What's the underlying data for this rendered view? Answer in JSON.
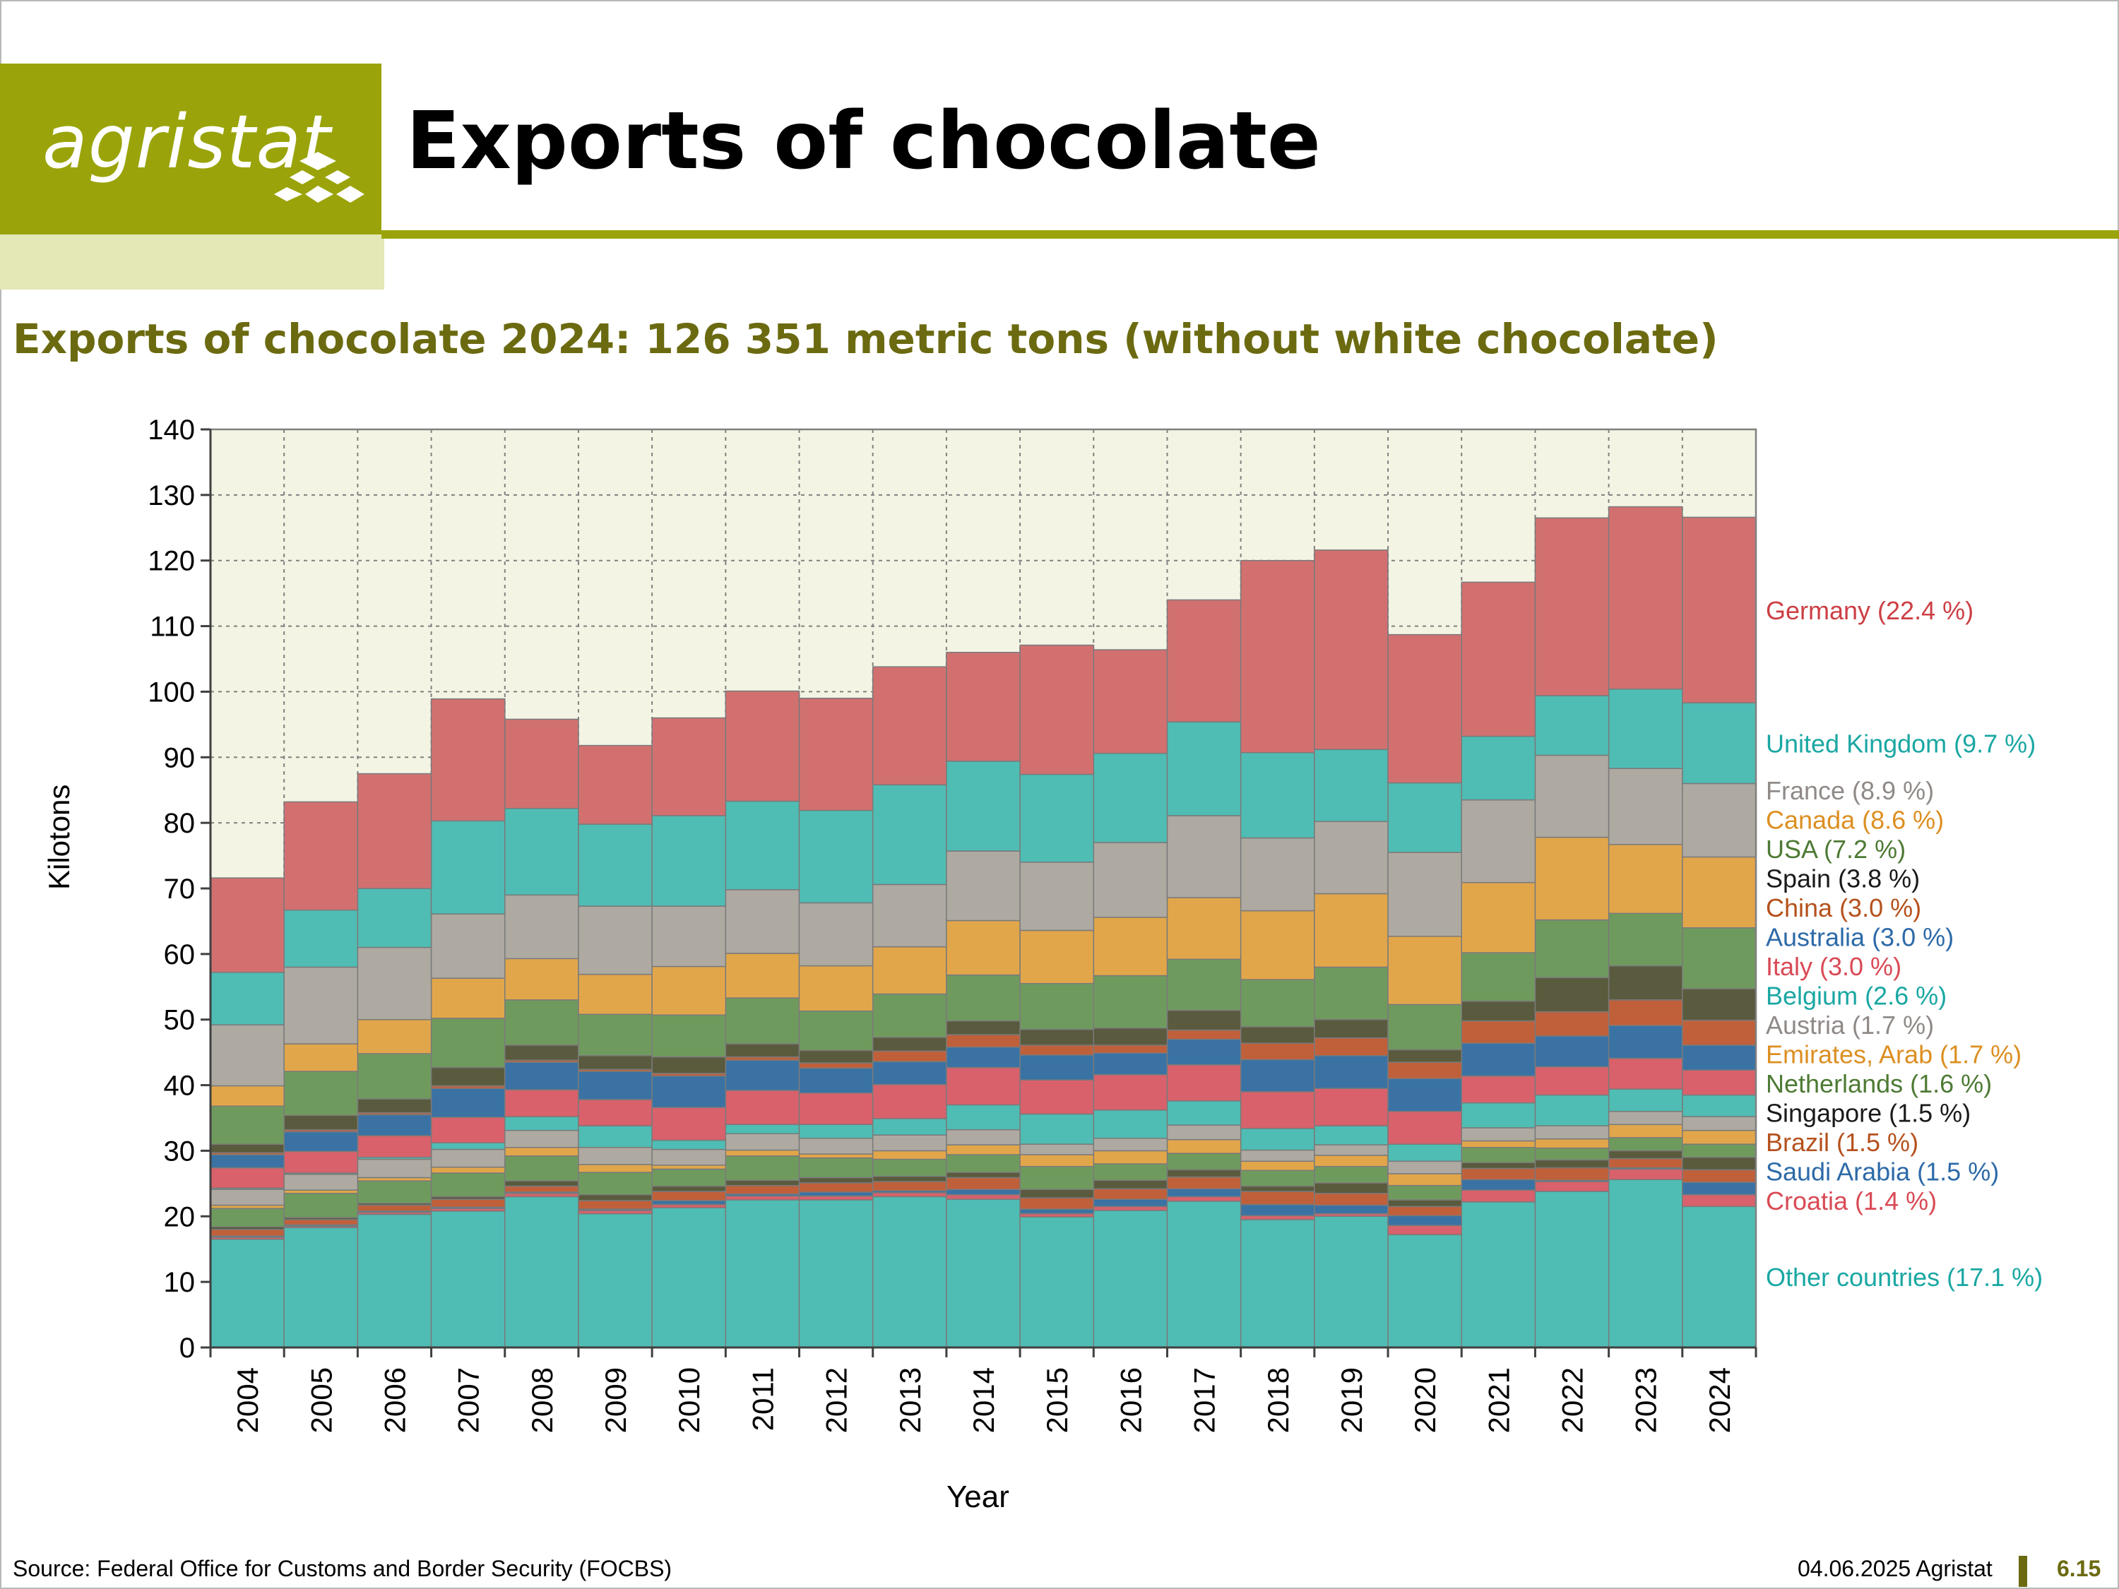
{
  "header": {
    "logo_text": "agristat",
    "page_title": "Exports of chocolate",
    "subtitle": "Exports of chocolate 2024: 126 351 metric tons (without white chocolate)"
  },
  "footer": {
    "source": "Source: Federal Office for Customs and Border Security (FOCBS)",
    "date": "04.06.2025 Agristat",
    "page_number": "6.15"
  },
  "chart_data": {
    "type": "bar",
    "stacked": true,
    "title": "Exports of chocolate 2024: 126 351 metric tons (without white chocolate)",
    "xlabel": "Year",
    "ylabel": "Kilotons",
    "ylim": [
      0,
      140
    ],
    "yticks": [
      0,
      10,
      20,
      30,
      40,
      50,
      60,
      70,
      80,
      90,
      100,
      110,
      120,
      130,
      140
    ],
    "grid": true,
    "legend_placement": "right",
    "plot_background": "#f4f4e4",
    "categories": [
      "2004",
      "2005",
      "2006",
      "2007",
      "2008",
      "2009",
      "2010",
      "2011",
      "2012",
      "2013",
      "2014",
      "2015",
      "2016",
      "2017",
      "2018",
      "2019",
      "2020",
      "2021",
      "2022",
      "2023",
      "2024"
    ],
    "series": [
      {
        "name": "Other countries (17.1 %)",
        "color": "#4fbdb4",
        "values": [
          16.5,
          18.3,
          20.3,
          20.8,
          23.0,
          20.4,
          21.3,
          22.5,
          22.5,
          23.0,
          22.6,
          19.9,
          20.9,
          22.3,
          19.5,
          20.0,
          17.2,
          22.2,
          23.8,
          25.6,
          21.5
        ]
      },
      {
        "name": "Croatia (1.4 %)",
        "color": "#d8616b",
        "values": [
          0.3,
          0.2,
          0.3,
          0.4,
          0.5,
          0.5,
          0.5,
          0.6,
          0.6,
          0.6,
          0.7,
          0.5,
          0.6,
          0.7,
          0.6,
          0.4,
          1.4,
          1.8,
          1.5,
          1.6,
          1.8
        ]
      },
      {
        "name": "Saudi Arabia (1.5 %)",
        "color": "#3a72a4",
        "values": [
          0.2,
          0.2,
          0.2,
          0.2,
          0.2,
          0.2,
          0.6,
          0.3,
          0.6,
          0.3,
          0.8,
          0.7,
          1.1,
          1.2,
          1.7,
          1.3,
          1.5,
          1.6,
          0.2,
          0.2,
          1.9
        ]
      },
      {
        "name": "Brazil (1.5 %)",
        "color": "#c0603a",
        "values": [
          1.0,
          0.8,
          0.9,
          1.2,
          0.9,
          1.3,
          1.4,
          1.3,
          1.4,
          1.4,
          1.8,
          1.7,
          1.6,
          1.8,
          2.0,
          1.8,
          1.4,
          1.7,
          1.9,
          1.4,
          1.9
        ]
      },
      {
        "name": "Singapore (1.5 %)",
        "color": "#5a5a3e",
        "values": [
          0.4,
          0.3,
          0.3,
          0.4,
          0.8,
          0.9,
          0.8,
          0.8,
          0.8,
          0.8,
          0.8,
          1.3,
          1.3,
          1.1,
          0.8,
          1.6,
          1.0,
          0.9,
          1.2,
          1.2,
          1.9
        ]
      },
      {
        "name": "Netherlands (1.6 %)",
        "color": "#6f9a5e",
        "values": [
          2.8,
          3.7,
          3.4,
          3.6,
          3.8,
          3.4,
          2.6,
          3.7,
          3.0,
          2.6,
          2.7,
          3.5,
          2.5,
          2.5,
          2.4,
          2.5,
          2.2,
          2.3,
          1.8,
          2.0,
          2.0
        ]
      },
      {
        "name": "Emirates, Arab (1.7 %)",
        "color": "#e2a64a",
        "values": [
          0.5,
          0.5,
          0.5,
          0.9,
          1.3,
          1.2,
          0.6,
          0.9,
          0.6,
          1.3,
          1.5,
          1.8,
          2.0,
          2.1,
          1.4,
          1.7,
          1.8,
          1.0,
          1.4,
          2.0,
          2.1
        ]
      },
      {
        "name": "Austria (1.7 %)",
        "color": "#aeaaa2",
        "values": [
          2.4,
          2.4,
          2.8,
          2.7,
          2.6,
          2.6,
          2.4,
          2.5,
          2.4,
          2.4,
          2.3,
          1.6,
          1.9,
          2.2,
          1.7,
          1.6,
          1.9,
          2.0,
          2.0,
          2.0,
          2.1
        ]
      },
      {
        "name": "Belgium (2.6 %)",
        "color": "#4fbdb4",
        "values": [
          0.2,
          0.2,
          0.3,
          1.0,
          2.1,
          3.3,
          1.4,
          1.4,
          2.1,
          2.5,
          3.8,
          4.6,
          4.3,
          3.7,
          3.3,
          2.9,
          2.6,
          3.8,
          4.7,
          3.4,
          3.3
        ]
      },
      {
        "name": "Italy (3.0 %)",
        "color": "#d8616b",
        "values": [
          3.1,
          3.3,
          3.3,
          3.9,
          4.1,
          4.0,
          5.0,
          5.2,
          4.8,
          5.2,
          5.7,
          5.2,
          5.4,
          5.5,
          5.6,
          5.7,
          5.0,
          4.1,
          4.3,
          4.7,
          3.8
        ]
      },
      {
        "name": "Australia (3.0 %)",
        "color": "#3a72a4",
        "values": [
          2.0,
          3.0,
          3.2,
          4.4,
          4.2,
          4.3,
          4.8,
          4.6,
          3.8,
          3.5,
          3.1,
          3.8,
          3.3,
          3.9,
          4.9,
          5.0,
          5.0,
          5.0,
          4.7,
          5.0,
          3.8
        ]
      },
      {
        "name": "China (3.0 %)",
        "color": "#c0603a",
        "values": [
          0.3,
          0.3,
          0.3,
          0.4,
          0.3,
          0.3,
          0.4,
          0.5,
          0.8,
          1.6,
          1.9,
          1.5,
          1.2,
          1.4,
          2.5,
          2.7,
          2.5,
          3.4,
          3.7,
          3.9,
          3.8
        ]
      },
      {
        "name": "Spain (3.8 %)",
        "color": "#5a5a3e",
        "values": [
          1.3,
          2.2,
          2.1,
          2.8,
          2.3,
          2.1,
          2.5,
          2.0,
          1.9,
          2.1,
          2.1,
          2.4,
          2.6,
          3.0,
          2.5,
          2.8,
          1.9,
          3.0,
          5.2,
          5.2,
          4.8
        ]
      },
      {
        "name": "USA (7.2 %)",
        "color": "#6f9a5e",
        "values": [
          5.8,
          6.7,
          6.9,
          7.5,
          6.9,
          6.3,
          6.4,
          7.0,
          6.0,
          6.6,
          7.0,
          7.0,
          8.0,
          7.8,
          7.2,
          8.0,
          6.9,
          7.4,
          8.8,
          8.0,
          9.3
        ]
      },
      {
        "name": "Canada (8.6 %)",
        "color": "#e2a64a",
        "values": [
          3.1,
          4.2,
          5.2,
          6.1,
          6.3,
          6.1,
          7.4,
          6.8,
          6.9,
          7.2,
          8.3,
          8.1,
          8.9,
          9.4,
          10.5,
          11.2,
          10.4,
          10.7,
          12.6,
          10.5,
          10.8
        ]
      },
      {
        "name": "France (8.9 %)",
        "color": "#aeaaa2",
        "values": [
          9.3,
          11.7,
          11.0,
          9.8,
          9.7,
          10.4,
          9.2,
          9.7,
          9.6,
          9.5,
          10.6,
          10.4,
          11.4,
          12.5,
          11.1,
          11.0,
          12.8,
          12.6,
          12.5,
          11.6,
          11.2
        ]
      },
      {
        "name": "United Kingdom (9.7 %)",
        "color": "#4fbdb4",
        "values": [
          8.0,
          8.7,
          9.0,
          14.2,
          13.2,
          12.5,
          13.8,
          13.5,
          14.1,
          15.2,
          13.7,
          13.4,
          13.6,
          14.3,
          13.0,
          11.0,
          10.6,
          9.7,
          9.1,
          12.1,
          12.3
        ]
      },
      {
        "name": "Germany (22.4 %)",
        "color": "#d27070",
        "values": [
          14.4,
          16.5,
          17.5,
          18.6,
          13.6,
          12.0,
          14.9,
          16.8,
          17.1,
          18.0,
          16.6,
          19.7,
          15.8,
          18.6,
          29.3,
          30.4,
          22.6,
          23.5,
          27.1,
          27.8,
          28.3
        ]
      }
    ]
  }
}
